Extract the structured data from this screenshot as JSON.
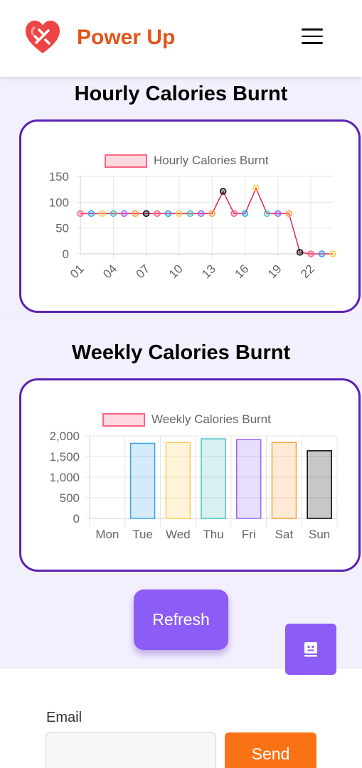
{
  "app": {
    "name": "Power Up"
  },
  "nav": {
    "menu_icon": "hamburger-icon"
  },
  "hourly": {
    "title": "Hourly Calories Burnt",
    "chart_data": {
      "type": "line",
      "legend": "Hourly Calories Burnt",
      "x": [
        "01",
        "02",
        "03",
        "04",
        "05",
        "06",
        "07",
        "08",
        "09",
        "10",
        "11",
        "12",
        "13",
        "14",
        "15",
        "16",
        "17",
        "18",
        "19",
        "20",
        "21",
        "22",
        "23",
        "24"
      ],
      "x_tick_labels": [
        "01",
        "04",
        "07",
        "10",
        "13",
        "16",
        "19",
        "22"
      ],
      "values": [
        78,
        78,
        78,
        78,
        78,
        78,
        78,
        78,
        78,
        78,
        78,
        78,
        78,
        121,
        78,
        78,
        127,
        78,
        78,
        78,
        3,
        0,
        0,
        0
      ],
      "ylim": [
        0,
        150
      ],
      "y_ticks": [
        0,
        50,
        100,
        150
      ],
      "line_color": "#e0245e",
      "point_colors": [
        "#ff6384",
        "#36a2eb",
        "#ffcd56",
        "#4bc0c0",
        "#9966ff",
        "#ff9f40",
        "#000000"
      ],
      "grid": true
    }
  },
  "weekly": {
    "title": "Weekly Calories Burnt",
    "chart_data": {
      "type": "bar",
      "legend": "Weekly Calories Burnt",
      "categories": [
        "Mon",
        "Tue",
        "Wed",
        "Thu",
        "Fri",
        "Sat",
        "Sun"
      ],
      "values": [
        0,
        1820,
        1840,
        1930,
        1910,
        1840,
        1640
      ],
      "ylim": [
        0,
        2000
      ],
      "y_ticks": [
        "0",
        "500",
        "1,000",
        "1,500",
        "2,000"
      ],
      "bar_colors": [
        "#ff6384",
        "#36a2eb",
        "#ffcd56",
        "#4bc0c0",
        "#9966ff",
        "#ff9f40",
        "#000000"
      ],
      "grid": true
    }
  },
  "actions": {
    "refresh_label": "Refresh",
    "chat_icon": "robot-icon"
  },
  "footer": {
    "email_label": "Email",
    "email_value": "",
    "send_label": "Send"
  }
}
